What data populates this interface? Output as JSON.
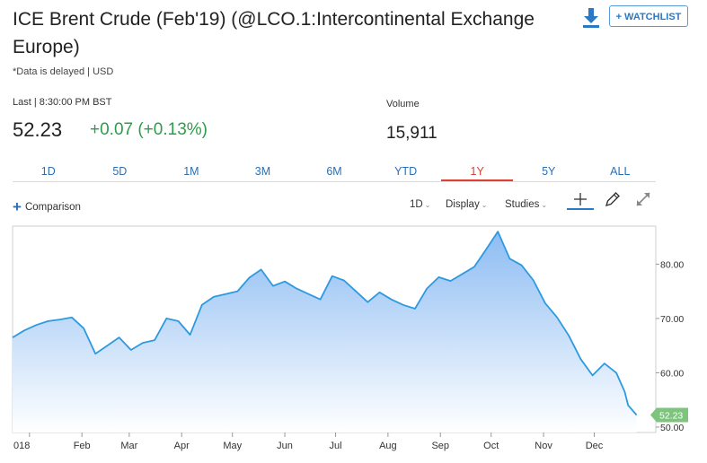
{
  "header": {
    "title": "ICE Brent Crude (Feb'19) (@LCO.1:Intercontinental Exchange Europe)",
    "delay_note": "*Data is delayed | USD",
    "watchlist_label": "+ WATCHLIST"
  },
  "quote": {
    "last_label": "Last | 8:30:00 PM BST",
    "last_price": "52.23",
    "change": "+0.07 (+0.13%)",
    "volume_label": "Volume",
    "volume_value": "15,911"
  },
  "range_tabs": [
    {
      "label": "1D"
    },
    {
      "label": "5D"
    },
    {
      "label": "1M"
    },
    {
      "label": "3M"
    },
    {
      "label": "6M"
    },
    {
      "label": "YTD"
    },
    {
      "label": "1Y",
      "active": true
    },
    {
      "label": "5Y"
    },
    {
      "label": "ALL"
    }
  ],
  "toolbar": {
    "comparison_label": "Comparison",
    "interval_label": "1D",
    "display_label": "Display",
    "studies_label": "Studies"
  },
  "colors": {
    "line": "#2d9ae0",
    "fill_top": "#8dbcf3",
    "fill_bottom": "#ffffff",
    "last_badge": "#7dc47d",
    "positive": "#2e9c4a",
    "active_tab": "#e0402f",
    "link": "#2b6fb3"
  },
  "chart_data": {
    "type": "area",
    "y_ticks": [
      "80.00",
      "70.00",
      "60.00",
      "50.00"
    ],
    "y_tick_values": [
      80,
      70,
      60,
      50
    ],
    "ylim": [
      49,
      87
    ],
    "x_tick_labels": [
      "018",
      "Feb",
      "Mar",
      "Apr",
      "May",
      "Jun",
      "Jul",
      "Aug",
      "Sep",
      "Oct",
      "Nov",
      "Dec"
    ],
    "last_value_label": "52.23",
    "last_value": 52.23,
    "grid": false,
    "series": [
      {
        "x": [
          "2017-12-22",
          "2017-12-29",
          "2018-01-05",
          "2018-01-12",
          "2018-01-19",
          "2018-01-26",
          "2018-02-02",
          "2018-02-09",
          "2018-02-16",
          "2018-02-23",
          "2018-03-02",
          "2018-03-09",
          "2018-03-16",
          "2018-03-23",
          "2018-03-30",
          "2018-04-06",
          "2018-04-13",
          "2018-04-20",
          "2018-04-27",
          "2018-05-04",
          "2018-05-11",
          "2018-05-18",
          "2018-05-25",
          "2018-06-01",
          "2018-06-08",
          "2018-06-15",
          "2018-06-22",
          "2018-06-29",
          "2018-07-06",
          "2018-07-13",
          "2018-07-20",
          "2018-07-27",
          "2018-08-03",
          "2018-08-10",
          "2018-08-17",
          "2018-08-24",
          "2018-08-31",
          "2018-09-07",
          "2018-09-14",
          "2018-09-21",
          "2018-09-28",
          "2018-10-05",
          "2018-10-12",
          "2018-10-19",
          "2018-10-26",
          "2018-11-02",
          "2018-11-09",
          "2018-11-16",
          "2018-11-23",
          "2018-11-30",
          "2018-12-07",
          "2018-12-14",
          "2018-12-19",
          "2018-12-21",
          "2018-12-26"
        ],
        "y": [
          66.5,
          67.8,
          68.8,
          69.5,
          69.8,
          70.2,
          68.2,
          63.5,
          65.0,
          66.5,
          64.2,
          65.5,
          66.0,
          70.0,
          69.5,
          67.0,
          72.5,
          74.0,
          74.5,
          75.0,
          77.5,
          79.0,
          76.0,
          76.8,
          75.5,
          74.5,
          73.5,
          77.8,
          77.0,
          75.0,
          73.0,
          74.8,
          73.5,
          72.5,
          71.8,
          75.5,
          77.6,
          76.9,
          78.2,
          79.5,
          82.7,
          86.0,
          81.0,
          79.8,
          77.0,
          72.8,
          70.2,
          66.8,
          62.5,
          59.5,
          61.7,
          60.0,
          56.5,
          54.0,
          52.23
        ]
      }
    ]
  }
}
